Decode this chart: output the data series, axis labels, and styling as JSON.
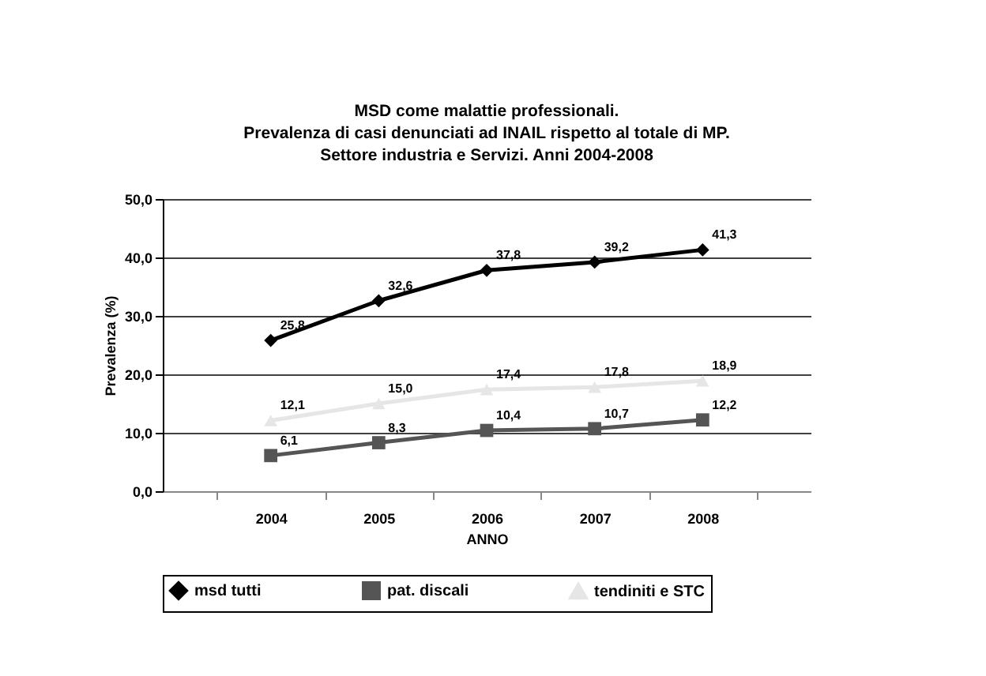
{
  "chart_data": {
    "type": "line",
    "title": "MSD come malattie professionali.\nPrevalenza di casi denunciati ad INAIL rispetto al totale di MP.\nSettore industria e Servizi. Anni 2004-2008",
    "xlabel": "ANNO",
    "ylabel": "Prevalenza (%)",
    "categories": [
      "2004",
      "2005",
      "2006",
      "2007",
      "2008"
    ],
    "series": [
      {
        "name": "msd tutti",
        "color": "#000000",
        "marker": "diamond",
        "values": [
          25.8,
          32.6,
          37.8,
          39.2,
          41.3
        ],
        "value_labels": [
          "25,8",
          "32,6",
          "37,8",
          "39,2",
          "41,3"
        ]
      },
      {
        "name": "pat. discali",
        "color": "#555555",
        "marker": "square",
        "values": [
          6.1,
          8.3,
          10.4,
          10.7,
          12.2
        ],
        "value_labels": [
          "6,1",
          "8,3",
          "10,4",
          "10,7",
          "12,2"
        ]
      },
      {
        "name": "tendiniti e STC",
        "color": "#e6e6e6",
        "marker": "triangle",
        "values": [
          12.1,
          15.0,
          17.4,
          17.8,
          18.9
        ],
        "value_labels": [
          "12,1",
          "15,0",
          "17,4",
          "17,8",
          "18,9"
        ]
      }
    ],
    "ylim": [
      0,
      50
    ],
    "yticks": [
      {
        "value": 0,
        "label": "0,0"
      },
      {
        "value": 10,
        "label": "10,0"
      },
      {
        "value": 20,
        "label": "20,0"
      },
      {
        "value": 30,
        "label": "30,0"
      },
      {
        "value": 40,
        "label": "40,0"
      },
      {
        "value": 50,
        "label": "50,0"
      }
    ],
    "grid": "y",
    "legend": "bottom"
  }
}
